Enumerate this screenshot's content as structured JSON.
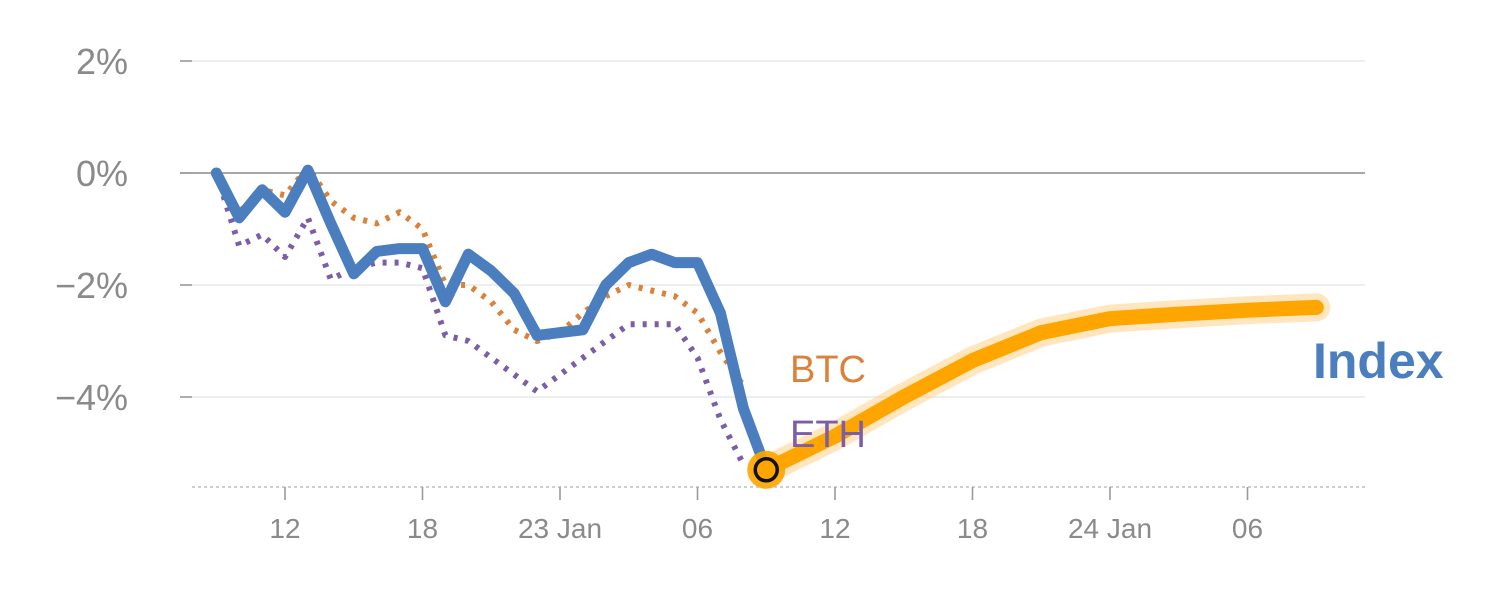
{
  "chart_data": {
    "type": "line",
    "y_axis": {
      "ylim": [
        -5.5,
        2.4
      ],
      "ticks": [
        {
          "value": 2,
          "label": "2%"
        },
        {
          "value": 0,
          "label": "0%"
        },
        {
          "value": -2,
          "label": "−2%"
        },
        {
          "value": -4,
          "label": "−4%"
        }
      ]
    },
    "x_axis": {
      "xlim": [
        -3,
        48
      ],
      "ticks": [
        {
          "value": 0,
          "label": "12"
        },
        {
          "value": 6,
          "label": "18"
        },
        {
          "value": 12,
          "label": "23 Jan"
        },
        {
          "value": 18,
          "label": "06"
        },
        {
          "value": 24,
          "label": "12"
        },
        {
          "value": 30,
          "label": "18"
        },
        {
          "value": 36,
          "label": "24 Jan"
        },
        {
          "value": 42,
          "label": "06"
        }
      ]
    },
    "series": [
      {
        "name": "BTC",
        "style": "dotted",
        "color": "#d9823b",
        "x": [
          -3,
          -2,
          -1,
          0,
          1,
          2,
          3,
          4,
          5,
          6,
          7,
          8,
          9,
          10,
          11,
          12,
          13,
          14,
          15,
          16,
          17,
          18,
          19,
          20
        ],
        "y": [
          0.0,
          -0.7,
          -0.3,
          -0.4,
          0.1,
          -0.5,
          -0.8,
          -0.9,
          -0.7,
          -1.0,
          -2.0,
          -2.0,
          -2.3,
          -2.8,
          -3.0,
          -2.85,
          -2.5,
          -2.2,
          -2.0,
          -2.1,
          -2.2,
          -2.5,
          -3.2,
          -3.8
        ]
      },
      {
        "name": "ETH",
        "style": "dotted",
        "color": "#7c5da8",
        "x": [
          -3,
          -2,
          -1,
          0,
          1,
          2,
          3,
          4,
          5,
          6,
          7,
          8,
          9,
          10,
          11,
          12,
          13,
          14,
          15,
          16,
          17,
          18,
          19,
          20
        ],
        "y": [
          0.0,
          -1.3,
          -1.1,
          -1.5,
          -0.8,
          -1.9,
          -1.7,
          -1.6,
          -1.6,
          -1.7,
          -2.9,
          -3.0,
          -3.3,
          -3.6,
          -3.9,
          -3.6,
          -3.3,
          -3.0,
          -2.7,
          -2.7,
          -2.7,
          -3.3,
          -4.4,
          -5.2
        ]
      },
      {
        "name": "Index",
        "style": "solid",
        "color": "#4a7ebf",
        "x": [
          -3,
          -2,
          -1,
          0,
          1,
          2,
          3,
          4,
          5,
          6,
          7,
          8,
          9,
          10,
          11,
          12,
          13,
          14,
          15,
          16,
          17,
          18,
          19,
          20,
          21
        ],
        "y": [
          0.0,
          -0.8,
          -0.3,
          -0.7,
          0.05,
          -0.9,
          -1.8,
          -1.4,
          -1.35,
          -1.35,
          -2.3,
          -1.45,
          -1.75,
          -2.15,
          -2.9,
          -2.85,
          -2.8,
          -2.0,
          -1.6,
          -1.45,
          -1.6,
          -1.6,
          -2.5,
          -4.2,
          -5.3
        ]
      },
      {
        "name": "Index",
        "style": "forecast",
        "color": "#ffa500",
        "x": [
          21,
          24,
          27,
          30,
          33,
          36,
          39,
          42,
          45
        ],
        "y": [
          -5.3,
          -4.7,
          -4.0,
          -3.35,
          -2.85,
          -2.6,
          -2.52,
          -2.45,
          -2.4
        ]
      }
    ],
    "labels": [
      {
        "text": "BTC",
        "series": "BTC",
        "color": "#d9823b"
      },
      {
        "text": "ETH",
        "series": "ETH",
        "color": "#7c5da8"
      },
      {
        "text": "Index",
        "series": "Index",
        "color": "#4a7ebf"
      }
    ],
    "marker": {
      "x": 21,
      "y": -5.3
    },
    "grid": true,
    "zero_line": true
  }
}
